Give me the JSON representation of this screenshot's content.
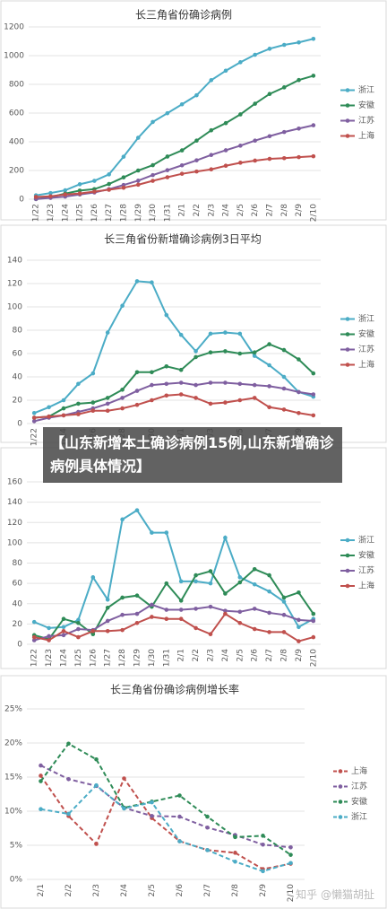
{
  "chart_data": [
    {
      "type": "line",
      "title": "长三角省份确诊病例",
      "categories": [
        "1/22",
        "1/23",
        "1/24",
        "1/25",
        "1/26",
        "1/27",
        "1/28",
        "1/29",
        "1/30",
        "1/31",
        "2/1",
        "2/2",
        "2/3",
        "2/4",
        "2/5",
        "2/6",
        "2/7",
        "2/8",
        "2/9",
        "2/10"
      ],
      "series": [
        {
          "name": "浙江",
          "color": "#4bacc6",
          "values": [
            27,
            43,
            62,
            104,
            128,
            173,
            296,
            428,
            538,
            599,
            661,
            724,
            829,
            895,
            954,
            1006,
            1048,
            1075,
            1092,
            1117
          ]
        },
        {
          "name": "安徽",
          "color": "#2e8b57",
          "values": [
            1,
            15,
            39,
            60,
            70,
            106,
            152,
            200,
            237,
            297,
            340,
            408,
            480,
            530,
            591,
            665,
            733,
            779,
            830,
            860
          ]
        },
        {
          "name": "江苏",
          "color": "#7f5fa0",
          "values": [
            1,
            9,
            18,
            33,
            47,
            70,
            99,
            129,
            168,
            202,
            236,
            271,
            308,
            341,
            373,
            408,
            439,
            468,
            492,
            515
          ]
        },
        {
          "name": "上海",
          "color": "#c0504d",
          "values": [
            16,
            20,
            33,
            40,
            53,
            66,
            80,
            101,
            128,
            153,
            177,
            193,
            208,
            233,
            254,
            269,
            281,
            286,
            293,
            299
          ]
        }
      ],
      "ylim": [
        0,
        1200
      ],
      "yticks": [
        0,
        200,
        400,
        600,
        800,
        1000,
        1200
      ],
      "grid": true,
      "markers": true,
      "line_style": "solid",
      "legend": "right"
    },
    {
      "type": "line",
      "title": "长三角省份新增确诊病例3日平均",
      "categories": [
        "1/22",
        null,
        "1/24",
        null,
        "1/26",
        null,
        "1/28",
        null,
        "1/30",
        null,
        "2/1",
        null,
        "2/3",
        null,
        "2/5",
        null,
        "2/7",
        null,
        "2/9",
        null
      ],
      "series": [
        {
          "name": "浙江",
          "color": "#4bacc6",
          "values": [
            9,
            14,
            20,
            34,
            43,
            78,
            101,
            122,
            121,
            93,
            76,
            62,
            77,
            78,
            77,
            58,
            50,
            40,
            27,
            23
          ]
        },
        {
          "name": "安徽",
          "color": "#2e8b57",
          "values": [
            5,
            6,
            13,
            17,
            18,
            22,
            29,
            44,
            44,
            49,
            46,
            57,
            61,
            62,
            60,
            61,
            68,
            63,
            55,
            43
          ]
        },
        {
          "name": "江苏",
          "color": "#7f5fa0",
          "values": [
            2,
            5,
            7,
            10,
            13,
            17,
            22,
            28,
            33,
            34,
            35,
            33,
            35,
            35,
            34,
            33,
            32,
            30,
            27,
            25
          ]
        },
        {
          "name": "上海",
          "color": "#c0504d",
          "values": [
            5,
            6,
            7,
            8,
            11,
            11,
            13,
            16,
            20,
            24,
            25,
            22,
            17,
            18,
            20,
            22,
            14,
            12,
            9,
            7
          ]
        }
      ],
      "ylim": [
        0,
        140
      ],
      "yticks": [
        0,
        20,
        40,
        60,
        80,
        100,
        120,
        140
      ],
      "grid": true,
      "markers": true,
      "line_style": "solid",
      "legend": "right"
    },
    {
      "type": "line",
      "categories": [
        "1/22",
        "1/23",
        "1/24",
        "1/25",
        "1/26",
        "1/27",
        "1/28",
        "1/29",
        "1/30",
        "1/31",
        "2/1",
        "2/2",
        "2/3",
        "2/4",
        "2/5",
        "2/6",
        "2/7",
        "2/8",
        "2/9",
        "2/10"
      ],
      "series": [
        {
          "name": "浙江",
          "color": "#4bacc6",
          "values": [
            22,
            16,
            17,
            24,
            66,
            44,
            123,
            132,
            110,
            110,
            62,
            62,
            60,
            105,
            66,
            59,
            52,
            42,
            17,
            25
          ]
        },
        {
          "name": "安徽",
          "color": "#2e8b57",
          "values": [
            9,
            5,
            25,
            21,
            10,
            36,
            46,
            48,
            37,
            60,
            43,
            68,
            72,
            50,
            61,
            74,
            68,
            46,
            51,
            30
          ]
        },
        {
          "name": "江苏",
          "color": "#7f5fa0",
          "values": [
            4,
            8,
            9,
            15,
            14,
            23,
            29,
            30,
            39,
            34,
            34,
            35,
            37,
            33,
            32,
            35,
            31,
            29,
            24,
            23
          ]
        },
        {
          "name": "上海",
          "color": "#c0504d",
          "values": [
            7,
            4,
            13,
            7,
            13,
            13,
            14,
            21,
            27,
            25,
            25,
            16,
            10,
            30,
            21,
            15,
            12,
            12,
            3,
            7
          ]
        }
      ],
      "ylim": [
        0,
        160
      ],
      "yticks": [
        0,
        20,
        40,
        60,
        80,
        100,
        120,
        140,
        160
      ],
      "grid": true,
      "markers": true,
      "line_style": "solid",
      "legend": "right"
    },
    {
      "type": "line",
      "title": "长三角省份确诊病例增长率",
      "categories": [
        "2/1",
        "2/2",
        "2/3",
        "2/4",
        "2/5",
        "2/6",
        "2/7",
        "2/8",
        "2/9",
        "2/10"
      ],
      "series": [
        {
          "name": "上海",
          "color": "#c0504d",
          "values": [
            15.2,
            9.3,
            5.2,
            14.8,
            9.0,
            5.6,
            4.3,
            3.9,
            1.5,
            2.3
          ]
        },
        {
          "name": "江苏",
          "color": "#7f5fa0",
          "values": [
            16.7,
            14.7,
            13.7,
            10.5,
            9.3,
            9.2,
            7.6,
            6.5,
            5.1,
            4.7
          ]
        },
        {
          "name": "安徽",
          "color": "#2e8b57",
          "values": [
            14.4,
            19.9,
            17.6,
            10.5,
            11.4,
            12.3,
            9.2,
            6.2,
            6.4,
            3.6
          ]
        },
        {
          "name": "浙江",
          "color": "#4bacc6",
          "values": [
            10.3,
            9.6,
            13.8,
            10.4,
            11.3,
            5.6,
            4.3,
            2.6,
            1.2,
            2.4
          ]
        }
      ],
      "ylim": [
        0,
        25
      ],
      "yticks": [
        {
          "value": 0,
          "label": "0%"
        },
        {
          "value": 5,
          "label": "5%"
        },
        {
          "value": 10,
          "label": "10%"
        },
        {
          "value": 15,
          "label": "15%"
        },
        {
          "value": 20,
          "label": "20%"
        },
        {
          "value": 25,
          "label": "25%"
        }
      ],
      "grid": true,
      "markers": true,
      "line_style": "dashed",
      "legend": "right"
    }
  ],
  "overlay": {
    "text": "【山东新增本土确诊病例15例,山东新增确诊病例具体情况】"
  },
  "watermark": "知乎 @懒猫胡扯"
}
